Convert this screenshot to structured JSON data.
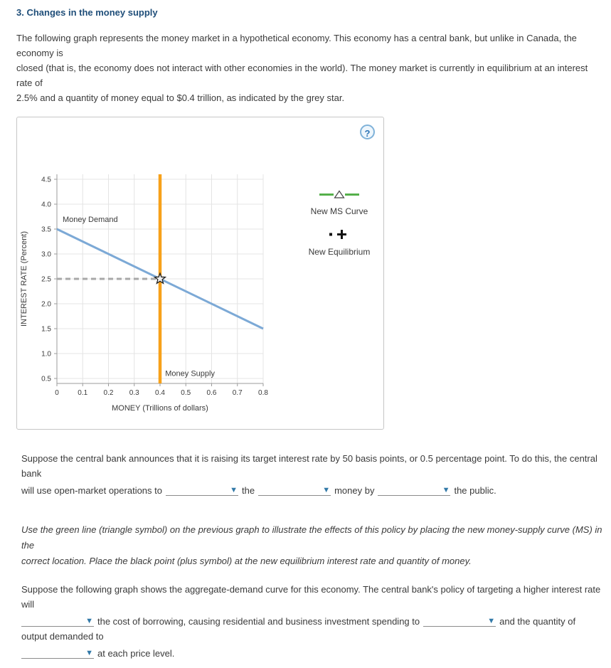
{
  "header": {
    "title": "3. Changes in the money supply"
  },
  "icons": {
    "dropdown_arrow": "▼",
    "help": "?"
  },
  "theme": {
    "title_blue": "#1F4E79",
    "dropdown_arrow_blue": "#3279A8",
    "demand_blue": "#7CA9D6",
    "supply_orange": "#F7A11A",
    "new_ms_green": "#55B04B"
  },
  "intro": {
    "lines": [
      "The following graph represents the money market in a hypothetical economy. This economy has a central bank, but unlike in Canada, the economy is",
      "closed (that is, the economy does not interact with other economies in the world). The money market is currently in equilibrium at an interest rate of",
      "2.5% and a quantity of money equal to $0.4 trillion, as indicated by the grey star."
    ]
  },
  "panel": {
    "legend": [
      {
        "label": "New MS Curve"
      },
      {
        "label": "New Equilibrium"
      }
    ]
  },
  "chart_data": {
    "type": "line",
    "title": "",
    "xlabel": "MONEY (Trillions of dollars)",
    "ylabel": "INTEREST RATE (Percent)",
    "xlim": [
      0,
      0.8
    ],
    "ylim": [
      0.5,
      4.5
    ],
    "xticks": [
      "0",
      "0.1",
      "0.2",
      "0.3",
      "0.4",
      "0.5",
      "0.6",
      "0.7",
      "0.8"
    ],
    "yticks": [
      "0.5",
      "1.0",
      "1.5",
      "2.0",
      "2.5",
      "3.0",
      "3.5",
      "4.0",
      "4.5"
    ],
    "grid": true,
    "legend_position": "right",
    "series": [
      {
        "name": "Money Demand",
        "color": "#7CA9D6",
        "width": 3,
        "points": [
          [
            0,
            3.5
          ],
          [
            0.8,
            1.5
          ]
        ],
        "label_at": [
          0.022,
          3.64
        ]
      },
      {
        "name": "Money Supply",
        "color": "#F7A11A",
        "width": 4.5,
        "points": [
          [
            0.4,
            0.5
          ],
          [
            0.4,
            4.5
          ]
        ],
        "extend_full_height": true,
        "label_at": [
          0.42,
          0.55
        ]
      }
    ],
    "dashed_guide": {
      "color": "#A8A8A8",
      "from": [
        0,
        2.5
      ],
      "to": [
        0.4,
        2.5
      ]
    },
    "equilibrium_marker": {
      "shape": "star",
      "x": 0.4,
      "y": 2.5,
      "fill": "#F0F0F0",
      "stroke": "#222222"
    },
    "colors": {
      "grid": "#E4E4E4",
      "axis": "#9B9B9B",
      "text": "#3a3a3a"
    }
  },
  "q1": {
    "line1": "Suppose the central bank announces that it is raising its target interest rate by 50 basis points, or 0.5 percentage point. To do this, the central bank",
    "seg1": "will use open-market operations to",
    "seg2": "the",
    "seg3": "money by",
    "seg4": "the public."
  },
  "instruction": {
    "lines": [
      "Use the green line (triangle symbol) on the previous graph to illustrate the effects of this policy by placing the new money-supply curve (MS) in the",
      "correct location. Place the black point (plus symbol) at the new equilibrium interest rate and quantity of money."
    ]
  },
  "q2": {
    "line1": "Suppose the following graph shows the aggregate-demand curve for this economy. The central bank's policy of targeting a higher interest rate will",
    "seg1": "the cost of borrowing, causing residential and business investment spending to",
    "seg2": "and the quantity of output demanded to",
    "seg3": "at each price level."
  }
}
